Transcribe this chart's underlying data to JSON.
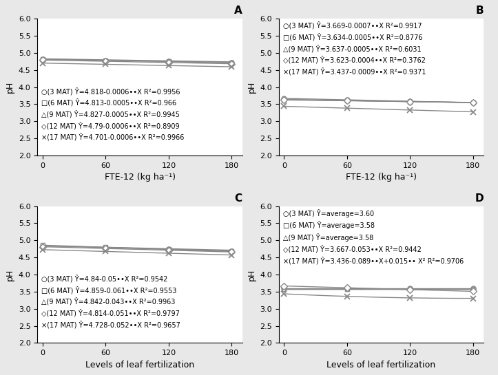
{
  "panels": {
    "A": {
      "label": "A",
      "xlabel": "FTE-12 (kg ha⁻¹)",
      "ylabel": "pH",
      "ylim": [
        2,
        6
      ],
      "yticks": [
        2,
        2.5,
        3,
        3.5,
        4,
        4.5,
        5,
        5.5,
        6
      ],
      "xticks": [
        0,
        60,
        120,
        180
      ],
      "xdata": [
        0,
        60,
        120,
        180
      ],
      "xline_max": 180,
      "legend_upper": false,
      "series": [
        {
          "intercept": 4.818,
          "slope": -0.0006,
          "marker": "o",
          "label": "○(3 MAT) Ŷ=4.818-0.0006••X R²=0.9956"
        },
        {
          "intercept": 4.813,
          "slope": -0.0005,
          "marker": "s",
          "label": "□(6 MAT) Ŷ=4.813-0.0005••X R²=0.966"
        },
        {
          "intercept": 4.827,
          "slope": -0.0005,
          "marker": "^",
          "label": "△(9 MAT) Ŷ=4.827-0.0005••X R²=0.9945"
        },
        {
          "intercept": 4.79,
          "slope": -0.0006,
          "marker": "D",
          "label": "◇(12 MAT) Ŷ=4.79-0.0006••X R²=0.8909"
        },
        {
          "intercept": 4.701,
          "slope": -0.0006,
          "marker": "x",
          "label": "×(17 MAT) Ŷ=4.701-0.0006••X R²=0.9966"
        }
      ]
    },
    "B": {
      "label": "B",
      "xlabel": "FTE-12 (kg ha⁻¹)",
      "ylabel": "pH",
      "ylim": [
        2,
        6
      ],
      "yticks": [
        2,
        2.5,
        3,
        3.5,
        4,
        4.5,
        5,
        5.5,
        6
      ],
      "xticks": [
        0,
        60,
        120,
        180
      ],
      "xdata": [
        0,
        60,
        120,
        180
      ],
      "xline_max": 180,
      "legend_upper": true,
      "series": [
        {
          "intercept": 3.669,
          "slope": -0.0007,
          "marker": "o",
          "label": "○(3 MAT) Ŷ=3.669-0.0007••X R²=0.9917"
        },
        {
          "intercept": 3.634,
          "slope": -0.0005,
          "marker": "s",
          "label": "□(6 MAT) Ŷ=3.634-0.0005••X R²=0.8776"
        },
        {
          "intercept": 3.637,
          "slope": -0.0005,
          "marker": "^",
          "label": "△(9 MAT) Ŷ=3.637-0.0005••X R²=0.6031"
        },
        {
          "intercept": 3.623,
          "slope": -0.0004,
          "marker": "D",
          "label": "◇(12 MAT) Ŷ=3.623-0.0004••X R²=0.3762"
        },
        {
          "intercept": 3.437,
          "slope": -0.0009,
          "marker": "x",
          "label": "×(17 MAT) Ŷ=3.437-0.0009••X R²=0.9371"
        }
      ]
    },
    "C": {
      "label": "C",
      "xlabel": "Levels of leaf fertilization",
      "ylabel": "pH",
      "ylim": [
        2,
        6
      ],
      "yticks": [
        2,
        2.5,
        3,
        3.5,
        4,
        4.5,
        5,
        5.5,
        6
      ],
      "xticks": [
        0,
        60,
        120,
        180
      ],
      "xdata": [
        0,
        1,
        2,
        3
      ],
      "xscale": 60,
      "xline_max": 3,
      "legend_upper": false,
      "series": [
        {
          "intercept": 4.84,
          "slope": -0.05,
          "marker": "o",
          "label": "○(3 MAT) Ŷ=4.84-0.05••X R²=0.9542"
        },
        {
          "intercept": 4.859,
          "slope": -0.061,
          "marker": "s",
          "label": "□(6 MAT) Ŷ=4.859-0.061••X R²=0.9553"
        },
        {
          "intercept": 4.842,
          "slope": -0.043,
          "marker": "^",
          "label": "△(9 MAT) Ŷ=4.842-0.043••X R²=0.9963"
        },
        {
          "intercept": 4.814,
          "slope": -0.051,
          "marker": "D",
          "label": "◇(12 MAT) Ŷ=4.814-0.051••X R²=0.9797"
        },
        {
          "intercept": 4.728,
          "slope": -0.052,
          "marker": "x",
          "label": "×(17 MAT) Ŷ=4.728-0.052••X R²=0.9657"
        }
      ]
    },
    "D": {
      "label": "D",
      "xlabel": "Levels of leaf fertilization",
      "ylabel": "pH",
      "ylim": [
        2,
        6
      ],
      "yticks": [
        2,
        2.5,
        3,
        3.5,
        4,
        4.5,
        5,
        5.5,
        6
      ],
      "xticks": [
        0,
        60,
        120,
        180
      ],
      "xdata": [
        0,
        1,
        2,
        3
      ],
      "xscale": 60,
      "xline_max": 3,
      "legend_upper": true,
      "series": [
        {
          "type": "constant",
          "value": 3.6,
          "marker": "o",
          "label": "○(3 MAT) Ŷ=average=3.60"
        },
        {
          "type": "constant",
          "value": 3.58,
          "marker": "s",
          "label": "□(6 MAT) Ŷ=average=3.58"
        },
        {
          "type": "constant",
          "value": 3.58,
          "marker": "^",
          "label": "△(9 MAT) Ŷ=average=3.58"
        },
        {
          "intercept": 3.667,
          "slope": -0.053,
          "marker": "D",
          "label": "◇(12 MAT) Ŷ=3.667-0.053••X R²=0.9442"
        },
        {
          "type": "quadratic",
          "a": 0.015,
          "b": -0.089,
          "intercept": 3.436,
          "marker": "x",
          "label": "×(17 MAT) Ŷ=3.436-0.089••X+0.015•• X² R²=0.9706"
        }
      ]
    }
  },
  "line_color": "#888888",
  "marker_size": 5,
  "line_width": 1.0,
  "legend_font_size": 7.0,
  "axis_label_font_size": 9,
  "tick_font_size": 8,
  "background_color": "#e8e8e8",
  "panel_bg": "#ffffff"
}
